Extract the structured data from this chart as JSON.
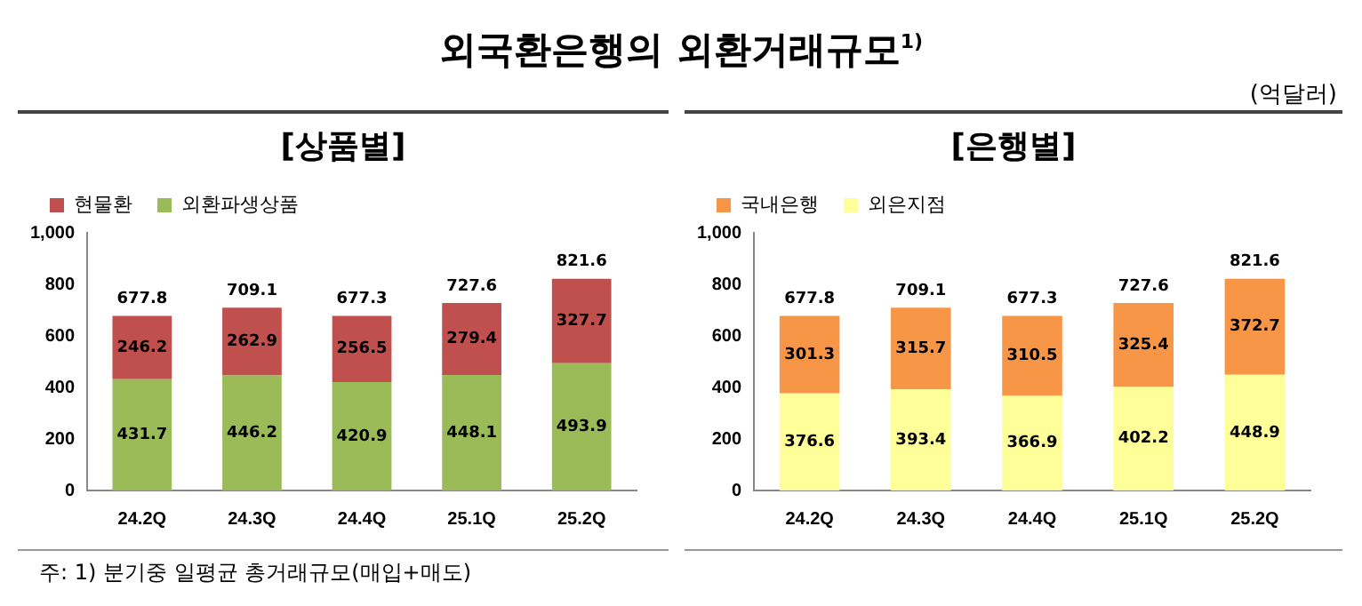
{
  "chart_data": [
    {
      "type": "other",
      "title": "외국환은행의 외환거래규모$^{1)}$",
      "annotations": [
        "(억달러)",
        "주: 1) 분기중 일평균 총거래규모(매입+매도)"
      ]
    },
    {
      "type": "bar",
      "title": "[상품별]",
      "categories": [
        "24.2Q",
        "24.3Q",
        "24.4Q",
        "25.1Q",
        "25.2Q"
      ],
      "stacked": true,
      "series": [
        {
          "name": "외환파생상품",
          "color": "#9bbb59",
          "values": [
            431.7,
            446.2,
            420.9,
            448.1,
            493.9
          ]
        },
        {
          "name": "현물환",
          "color": "#c0504d",
          "values": [
            246.2,
            262.9,
            256.5,
            279.4,
            327.7
          ]
        }
      ],
      "totals": [
        "677.8",
        "709.1",
        "677.3",
        "727.6",
        "821.6"
      ],
      "data_labels": true,
      "ylim": [
        0,
        1000
      ],
      "yticks": [
        0,
        200,
        400,
        600,
        800,
        {
          "value": 1000,
          "label": "1,000"
        }
      ],
      "grid": false,
      "legend": "top left"
    },
    {
      "type": "bar",
      "title": "[은행별]",
      "categories": [
        "24.2Q",
        "24.3Q",
        "24.4Q",
        "25.1Q",
        "25.2Q"
      ],
      "stacked": true,
      "series": [
        {
          "name": "외은지점",
          "color": "#ffff99",
          "values": [
            376.6,
            393.4,
            366.9,
            402.2,
            448.9
          ]
        },
        {
          "name": "국내은행",
          "color": "#f79646",
          "values": [
            301.3,
            315.7,
            310.5,
            325.4,
            372.7
          ]
        }
      ],
      "totals": [
        "677.8",
        "709.1",
        "677.3",
        "727.6",
        "821.6"
      ],
      "data_labels": true,
      "ylim": [
        0,
        1000
      ],
      "yticks": [
        0,
        200,
        400,
        600,
        800,
        {
          "value": 1000,
          "label": "1,000"
        }
      ],
      "grid": false,
      "legend": "top left"
    }
  ]
}
